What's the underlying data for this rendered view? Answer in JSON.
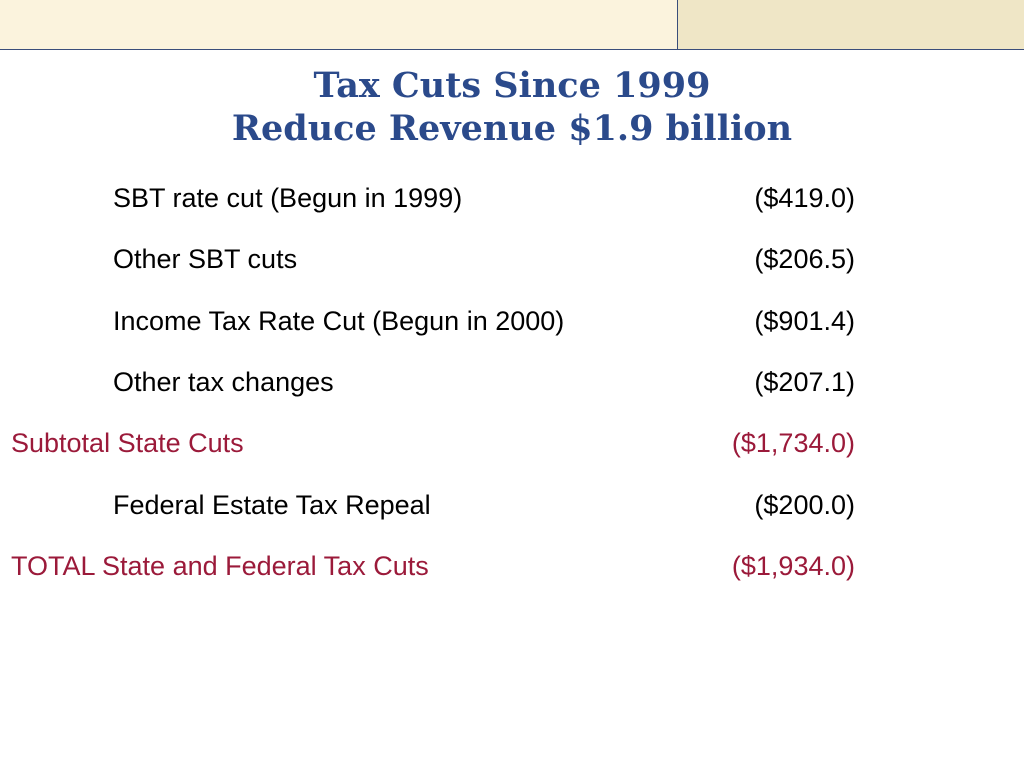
{
  "slide": {
    "title_line1": "Tax Cuts Since 1999",
    "title_line2": "Reduce Revenue $1.9 billion",
    "colors": {
      "title": "#2b4a8b",
      "highlight": "#9b1a3a",
      "band_left": "#fbf3dd",
      "band_right": "#efe6c6",
      "band_border": "#3a4d7a"
    },
    "rows": [
      {
        "label": "SBT rate cut (Begun in 1999)",
        "value": "($419.0)"
      },
      {
        "label": "Other SBT cuts",
        "value": "($206.5)"
      },
      {
        "label": "Income Tax Rate Cut (Begun in 2000)",
        "value": "($901.4)"
      },
      {
        "label": "Other tax changes",
        "value": "($207.1)"
      },
      {
        "label": "Subtotal State Cuts",
        "value": "($1,734.0)"
      },
      {
        "label": "Federal Estate Tax Repeal",
        "value": "($200.0)"
      },
      {
        "label": "TOTAL State and Federal Tax Cuts",
        "value": "($1,934.0)"
      }
    ]
  }
}
